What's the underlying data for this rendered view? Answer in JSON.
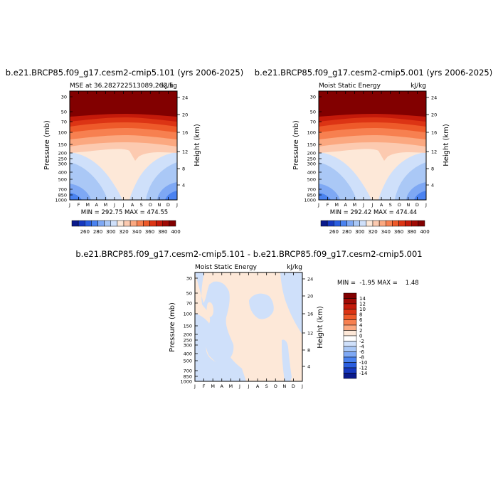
{
  "chart_data": [
    {
      "type": "heatmap",
      "title": "b.e21.BRCP85.f09_g17.cesm2-cmip5.101 (yrs 2006-2025)",
      "subtitle_left": "MSE at 36.282722513089,262.5",
      "subtitle_right": "kJ/kg",
      "ylabel": "Pressure (mb)",
      "ylabel_right": "Height (km)",
      "x_ticks": [
        "J",
        "F",
        "M",
        "A",
        "M",
        "J",
        "J",
        "A",
        "S",
        "O",
        "N",
        "D",
        "J"
      ],
      "y_ticks": [
        "30",
        "50",
        "70",
        "100",
        "150",
        "200",
        "250",
        "300",
        "400",
        "500",
        "700",
        "850",
        "1000"
      ],
      "y2_ticks": [
        "24",
        "20",
        "16",
        "12",
        "8",
        "4"
      ],
      "stats": "MIN = 292.75 MAX = 474.55",
      "colorbar_labels": [
        "260",
        "280",
        "300",
        "320",
        "340",
        "360",
        "380",
        "400"
      ]
    },
    {
      "type": "heatmap",
      "title": "b.e21.BRCP85.f09_g17.cesm2-cmip5.001 (yrs 2006-2025)",
      "subtitle_left": "Moist Static Energy",
      "subtitle_right": "kJ/kg",
      "ylabel": "Pressure (mb)",
      "ylabel_right": "Height (km)",
      "x_ticks": [
        "J",
        "F",
        "M",
        "A",
        "M",
        "J",
        "J",
        "A",
        "S",
        "O",
        "N",
        "D",
        "J"
      ],
      "y_ticks": [
        "30",
        "50",
        "70",
        "100",
        "150",
        "200",
        "250",
        "300",
        "400",
        "500",
        "700",
        "850",
        "1000"
      ],
      "y2_ticks": [
        "24",
        "20",
        "16",
        "12",
        "8",
        "4"
      ],
      "stats": "MIN = 292.42 MAX = 474.44",
      "colorbar_labels": [
        "260",
        "280",
        "300",
        "320",
        "340",
        "360",
        "380",
        "400"
      ]
    },
    {
      "type": "heatmap",
      "title": "b.e21.BRCP85.f09_g17.cesm2-cmip5.101 - b.e21.BRCP85.f09_g17.cesm2-cmip5.001",
      "subtitle_left": "Moist Static Energy",
      "subtitle_right": "kJ/kg",
      "ylabel": "Pressure (mb)",
      "ylabel_right": "Height (km)",
      "x_ticks": [
        "J",
        "F",
        "M",
        "A",
        "M",
        "J",
        "J",
        "A",
        "S",
        "O",
        "N",
        "D",
        "J"
      ],
      "y_ticks": [
        "30",
        "50",
        "70",
        "100",
        "150",
        "200",
        "250",
        "300",
        "400",
        "500",
        "700",
        "850",
        "1000"
      ],
      "y2_ticks": [
        "24",
        "20",
        "16",
        "12",
        "8",
        "4"
      ],
      "stats": "MIN =  -1.95 MAX =    1.48",
      "colorbar_labels": [
        "14",
        "12",
        "10",
        "8",
        "6",
        "4",
        "2",
        "0",
        "-2",
        "-4",
        "-6",
        "-8",
        "-10",
        "-12",
        "-14"
      ]
    }
  ],
  "colors": {
    "abs_scale": [
      "#0a1a8c",
      "#1638bf",
      "#2a5ee0",
      "#4a82f0",
      "#7ea8f4",
      "#aac8f6",
      "#cfe0fa",
      "#fde8d8",
      "#fccab0",
      "#fba880",
      "#f78050",
      "#ee5a2a",
      "#dc3414",
      "#c41a0a",
      "#a00a04",
      "#820000"
    ],
    "diff_scale": [
      "#820000",
      "#a00a04",
      "#c41a0a",
      "#dc3414",
      "#ee5a2a",
      "#f78050",
      "#fba880",
      "#fde8d8",
      "#ffffff",
      "#cfe0fa",
      "#aac8f6",
      "#7ea8f4",
      "#4a82f0",
      "#2a5ee0",
      "#1638bf",
      "#0a1a8c"
    ]
  }
}
